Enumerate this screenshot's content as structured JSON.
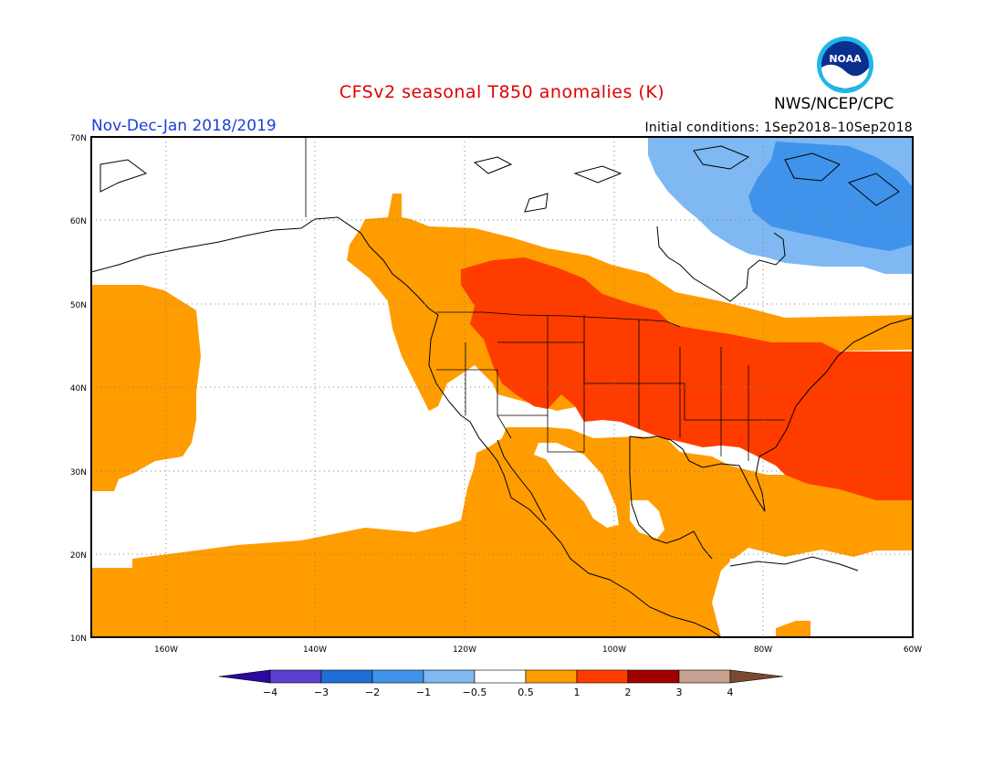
{
  "title": "CFSv2 seasonal T850 anomalies (K)",
  "period": "Nov-Dec-Jan 2018/2019",
  "initial_conditions": "Initial conditions: 1Sep2018–10Sep2018",
  "agency": "NWS/NCEP/CPC",
  "logo": {
    "text": "NOAA",
    "icon": "noaa-logo-icon"
  },
  "map": {
    "lon_range": [
      -172,
      -60
    ],
    "lat_range": [
      10,
      70
    ],
    "lat_labels": [
      "70N",
      "60N",
      "50N",
      "40N",
      "30N",
      "20N",
      "10N"
    ],
    "lon_labels": [
      "160W",
      "140W",
      "120W",
      "100W",
      "80W",
      "60W"
    ],
    "grid": "dotted"
  },
  "colorbar": {
    "labels": [
      "−4",
      "−3",
      "−2",
      "−1",
      "−0.5",
      "0.5",
      "1",
      "2",
      "3",
      "4"
    ],
    "colors": [
      "#2a0a9e",
      "#5b3fd0",
      "#1f6fd8",
      "#3f93ea",
      "#7fb8f2",
      "#ffffff",
      "#ff9c00",
      "#ff3c00",
      "#a00000",
      "#c8a090",
      "#7a4a30"
    ]
  }
}
